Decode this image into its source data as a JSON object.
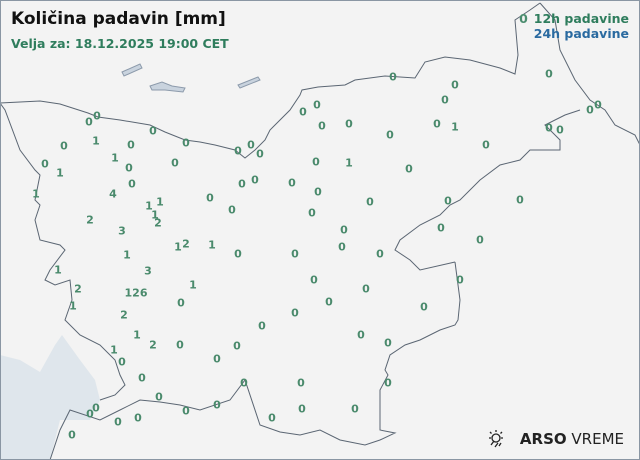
{
  "header": {
    "title": "Količina padavin [mm]",
    "valid_for": "Velja za: 18.12.2025 19:00 CET"
  },
  "legend": {
    "sample_value": "0",
    "label_12h": "12h padavine",
    "label_24h": "24h padavine",
    "color_12h": "#2f7d5d",
    "color_24h": "#2a6aa0"
  },
  "logo": {
    "brand": "ARSO",
    "product": "VREME",
    "icon": "sun-rain-icon"
  },
  "stations_12h_values": [
    "0",
    "0",
    "0",
    "1",
    "0",
    "0",
    "0",
    "0",
    "1",
    "1",
    "0",
    "0",
    "0",
    "0",
    "0",
    "0",
    "0",
    "1",
    "4",
    "0",
    "1",
    "1",
    "1",
    "2",
    "0",
    "0",
    "2",
    "3",
    "1",
    "2",
    "1",
    "0",
    "1",
    "3",
    "1",
    "2",
    "1",
    "126",
    "0",
    "1",
    "2",
    "1",
    "2",
    "0",
    "1",
    "0",
    "0",
    "0",
    "0",
    "0",
    "0",
    "0",
    "0",
    "0",
    "0",
    "0",
    "0",
    "0",
    "0",
    "0",
    "0",
    "0",
    "0",
    "0",
    "0",
    "0",
    "0",
    "0",
    "0",
    "0",
    "0",
    "0",
    "0",
    "1",
    "0",
    "0",
    "0",
    "0",
    "0",
    "0",
    "0",
    "0",
    "0",
    "0",
    "0",
    "1",
    "0",
    "0",
    "0",
    "0",
    "0",
    "0",
    "0",
    "0",
    "0",
    "0",
    "0",
    "0",
    "0",
    "0",
    "0",
    "0",
    "0"
  ]
}
